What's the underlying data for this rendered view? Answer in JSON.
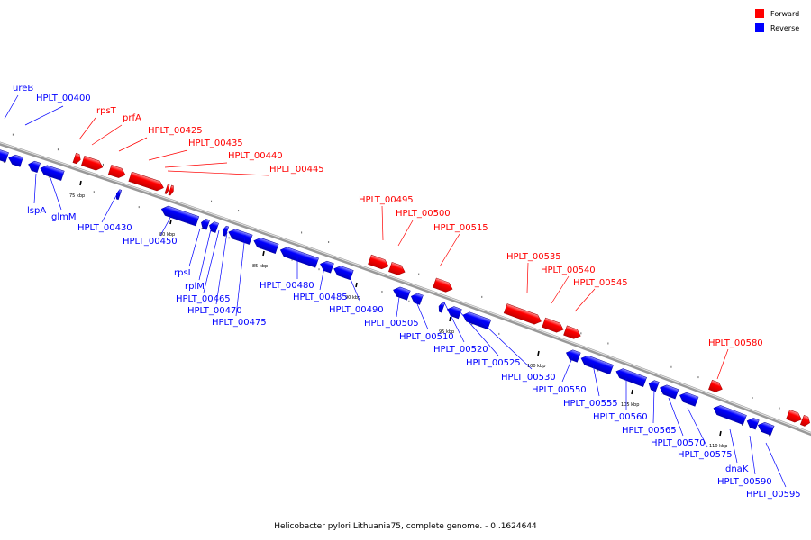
{
  "colors": {
    "forward": "#ff0000",
    "reverse": "#0000ff",
    "backbone": "#999999"
  },
  "legend": [
    {
      "label": "Forward",
      "color": "#ff0000"
    },
    {
      "label": "Reverse",
      "color": "#0000ff"
    }
  ],
  "caption": "Helicobacter pylori Lithuania75, complete genome. - 0..1624644",
  "genes_forward": [
    "rpsT",
    "prfA",
    "HPLT_00425",
    "HPLT_00435",
    "HPLT_00440",
    "HPLT_00445",
    "HPLT_00495",
    "HPLT_00500",
    "HPLT_00515",
    "HPLT_00535",
    "HPLT_00540",
    "HPLT_00545",
    "HPLT_00580"
  ],
  "genes_reverse": [
    "ureB",
    "HPLT_00400",
    "lspA",
    "glmM",
    "HPLT_00430",
    "HPLT_00450",
    "rpsI",
    "rplM",
    "HPLT_00465",
    "HPLT_00470",
    "HPLT_00475",
    "HPLT_00480",
    "HPLT_00485",
    "HPLT_00490",
    "HPLT_00505",
    "HPLT_00510",
    "HPLT_00520",
    "HPLT_00525",
    "HPLT_00530",
    "HPLT_00550",
    "HPLT_00555",
    "HPLT_00560",
    "HPLT_00565",
    "HPLT_00570",
    "HPLT_00575",
    "dnaK",
    "HPLT_00590",
    "HPLT_00595"
  ],
  "scale_ticks": [
    "75 kbp",
    "80 kbp",
    "85 kbp",
    "90 kbp",
    "95 kbp",
    "100 kbp",
    "105 kbp",
    "110 kbp"
  ]
}
